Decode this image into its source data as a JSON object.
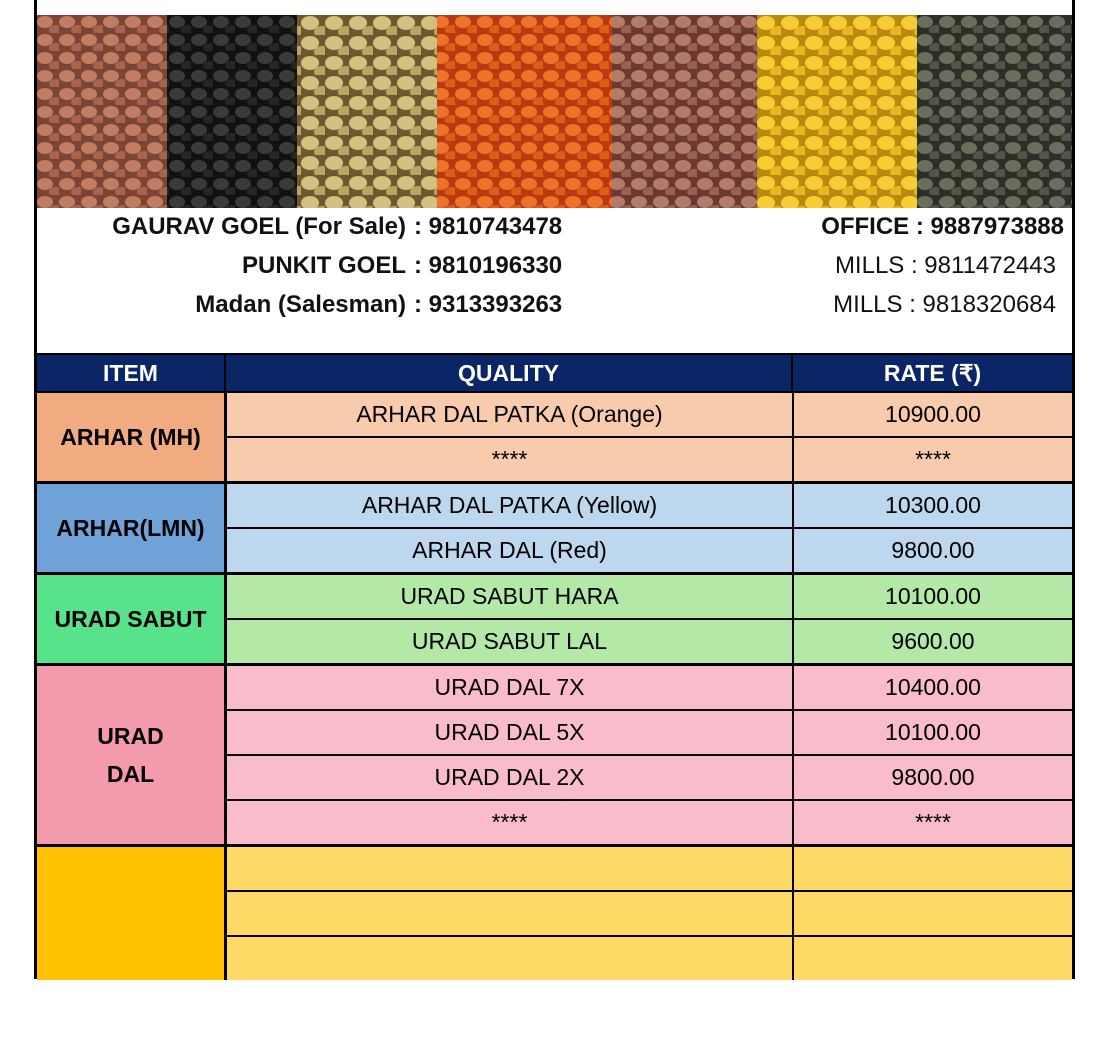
{
  "contacts": {
    "left": [
      {
        "name": "GAURAV GOEL (For Sale)",
        "phone": ": 9810743478"
      },
      {
        "name": "PUNKIT GOEL",
        "phone": ": 9810196330"
      },
      {
        "name": "Madan (Salesman)",
        "phone": ": 9313393263"
      }
    ],
    "right": [
      "OFFICE : 9887973888",
      "MILLS : 9811472443",
      "MILLS : 9818320684"
    ]
  },
  "table": {
    "headers": [
      "ITEM",
      "QUALITY",
      "RATE (₹)"
    ],
    "groups": [
      {
        "item": "ARHAR (MH)",
        "item_color": "#f2aa80",
        "row_color": "#f8cbad",
        "rows": [
          [
            "ARHAR DAL PATKA (Orange)",
            "10900.00"
          ],
          [
            "****",
            "****"
          ]
        ]
      },
      {
        "item": "ARHAR(LMN)",
        "item_color": "#6fa3d8",
        "row_color": "#bdd7ee",
        "rows": [
          [
            "ARHAR DAL PATKA (Yellow)",
            "10300.00"
          ],
          [
            "ARHAR DAL (Red)",
            "9800.00"
          ]
        ]
      },
      {
        "item": "URAD SABUT",
        "item_color": "#58e38b",
        "row_color": "#b4e8a6",
        "rows": [
          [
            "URAD SABUT HARA",
            "10100.00"
          ],
          [
            "URAD SABUT LAL",
            "9600.00"
          ]
        ]
      },
      {
        "item": "URAD\nDAL",
        "item_color": "#f39aac",
        "row_color": "#f8bccb",
        "rows": [
          [
            "URAD DAL 7X",
            "10400.00"
          ],
          [
            "URAD DAL 5X",
            "10100.00"
          ],
          [
            "URAD DAL 2X",
            "9800.00"
          ],
          [
            "****",
            "****"
          ]
        ]
      }
    ]
  }
}
